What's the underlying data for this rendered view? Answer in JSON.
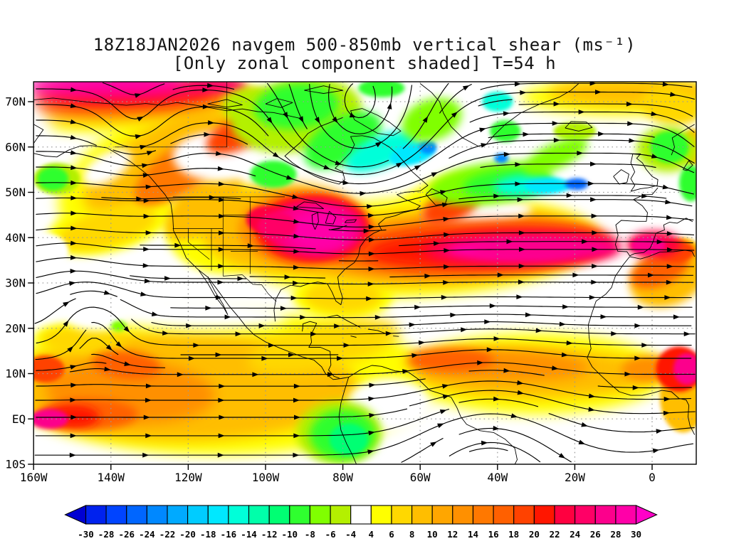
{
  "title": {
    "line1": "18Z18JAN2026 navgem 500-850mb vertical shear (ms⁻¹)",
    "line2": "[Only zonal component shaded] T=54 h"
  },
  "axes": {
    "lat_labels": [
      "70N",
      "60N",
      "50N",
      "40N",
      "30N",
      "20N",
      "10N",
      "EQ",
      "10S"
    ],
    "lat_values": [
      70,
      60,
      50,
      40,
      30,
      20,
      10,
      0,
      -10
    ],
    "lon_labels": [
      "160W",
      "140W",
      "120W",
      "100W",
      "80W",
      "60W",
      "40W",
      "20W",
      "0"
    ],
    "lon_values": [
      -160,
      -140,
      -120,
      -100,
      -80,
      -60,
      -40,
      -20,
      0
    ]
  },
  "colorbar": {
    "tick_labels": [
      "-30",
      "-28",
      "-26",
      "-24",
      "-22",
      "-20",
      "-18",
      "-16",
      "-14",
      "-12",
      "-10",
      "-8",
      "-6",
      "-4",
      "4",
      "6",
      "8",
      "10",
      "12",
      "14",
      "16",
      "18",
      "20",
      "22",
      "24",
      "26",
      "28",
      "30"
    ],
    "segment_colors": [
      "#0022ee",
      "#0044ff",
      "#0066ff",
      "#0088ff",
      "#00aaff",
      "#00ccff",
      "#00e8ff",
      "#00ffd9",
      "#00ffaa",
      "#00ff73",
      "#2fff2f",
      "#80ff00",
      "#b4f000",
      "#ffffff",
      "#ffff00",
      "#ffd800",
      "#ffbe00",
      "#ffa600",
      "#ff9000",
      "#ff7800",
      "#ff6000",
      "#ff4200",
      "#ff1600",
      "#ff0040",
      "#ff0066",
      "#fc008c",
      "#ff00a8"
    ],
    "left_arrow_color": "#0000d2",
    "right_arrow_color": "#ff00c8"
  },
  "chart_data": {
    "type": "heatmap",
    "title": "18Z18JAN2026 navgem 500-850mb vertical shear (ms⁻¹)",
    "subtitle": "[Only zonal component shaded] T=54 h",
    "model": "navgem",
    "valid_time": "18Z18JAN2026",
    "forecast_hour_label": "T=54 h",
    "layer": "500-850mb",
    "variable": "vertical shear, zonal component shaded",
    "units": "ms⁻¹",
    "overlay": "shear-vector streamlines with arrowheads",
    "grid": "dotted gray graticule every 10 deg lat / 20 deg lon",
    "legend_position": "bottom horizontal colorbar with out-of-range arrows",
    "lat_ticks": [
      "70N",
      "60N",
      "50N",
      "40N",
      "30N",
      "20N",
      "10N",
      "EQ",
      "10S"
    ],
    "lon_ticks": [
      "160W",
      "140W",
      "120W",
      "100W",
      "80W",
      "60W",
      "40W",
      "20W",
      "0"
    ],
    "lon_range_deg": [
      -160,
      11
    ],
    "lat_range_deg": [
      -10,
      74
    ],
    "colorbar_levels": [
      -30,
      -28,
      -26,
      -24,
      -22,
      -20,
      -18,
      -16,
      -14,
      -12,
      -10,
      -8,
      -6,
      -4,
      4,
      6,
      8,
      10,
      12,
      14,
      16,
      18,
      20,
      22,
      24,
      26,
      28,
      30
    ],
    "shaded_features": [
      {
        "area": "Arctic band top-left (Bering/Chukchi)",
        "lon": -140,
        "lat": 73,
        "shear_ms": "26 to >30"
      },
      {
        "area": "Gulf of Alaska diagonal jet streak",
        "lon": -110,
        "lat": 63,
        "shear_ms": "16-22"
      },
      {
        "area": "Eastern United States / Great Lakes maximum",
        "lon": -87,
        "lat": 42,
        "shear_ms": "26 to >30"
      },
      {
        "area": "Subtropical Atlantic jet 35-40N",
        "lon": -36,
        "lat": 38,
        "shear_ms": "22-28"
      },
      {
        "area": "Iberia / Morocco extension",
        "lon": -1,
        "lat": 38,
        "shear_ms": "24-28"
      },
      {
        "area": "Northern Canada / Hudson Bay easterly anomaly",
        "lon": -85,
        "lat": 63,
        "shear_ms": "-8 to -18"
      },
      {
        "area": "North Atlantic 50-54N band, blue core SW of Ireland",
        "lon": -20,
        "lat": 52,
        "shear_ms": "-16 to -26"
      },
      {
        "area": "Scandinavia / Norwegian Sea band",
        "lon": -5,
        "lat": 71,
        "shear_ms": "8-14"
      },
      {
        "area": "Equatorial central Pacific maximum",
        "lon": -152,
        "lat": 0,
        "shear_ms": "20 to >26"
      },
      {
        "area": "Tropical NE Pacific 10-14N",
        "lon": -136,
        "lat": 12,
        "shear_ms": "18-22"
      },
      {
        "area": "Tropical Atlantic 10-15N band",
        "lon": -50,
        "lat": 13,
        "shear_ms": "16-20"
      },
      {
        "area": "West Africa coast near 10N",
        "lon": 8,
        "lat": 11,
        "shear_ms": "22 to >28"
      },
      {
        "area": "NW South America (Ecuador/Peru)",
        "lon": -79,
        "lat": -4,
        "shear_ms": "-8 to -12"
      },
      {
        "area": "Subtropical Pacific eddy interior and white bands",
        "lon": -144,
        "lat": 22,
        "shear_ms": "-4 to 4"
      }
    ]
  }
}
